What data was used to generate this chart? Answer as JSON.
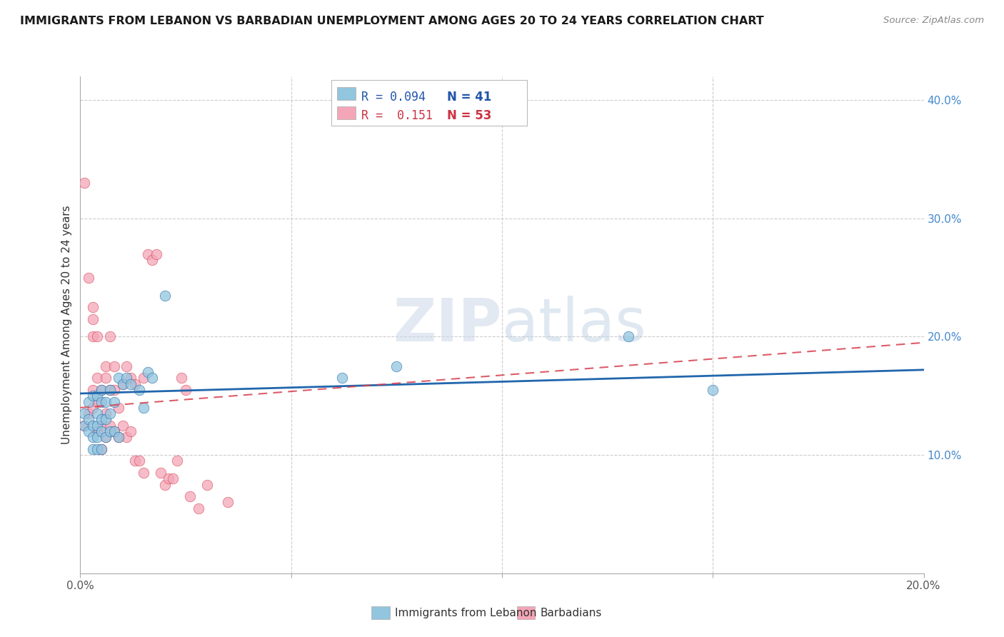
{
  "title": "IMMIGRANTS FROM LEBANON VS BARBADIAN UNEMPLOYMENT AMONG AGES 20 TO 24 YEARS CORRELATION CHART",
  "source": "Source: ZipAtlas.com",
  "ylabel": "Unemployment Among Ages 20 to 24 years",
  "xlim": [
    0.0,
    0.2
  ],
  "ylim": [
    0.0,
    0.42
  ],
  "color_blue": "#92c5de",
  "color_pink": "#f4a6b8",
  "color_blue_line": "#2166ac",
  "color_pink_line": "#d6404e",
  "watermark_zip": "ZIP",
  "watermark_atlas": "atlas",
  "legend_bottom_1": "Immigrants from Lebanon",
  "legend_bottom_2": "Barbadians",
  "blue_scatter_x": [
    0.001,
    0.001,
    0.002,
    0.002,
    0.002,
    0.003,
    0.003,
    0.003,
    0.003,
    0.004,
    0.004,
    0.004,
    0.004,
    0.004,
    0.005,
    0.005,
    0.005,
    0.005,
    0.005,
    0.006,
    0.006,
    0.006,
    0.007,
    0.007,
    0.007,
    0.008,
    0.008,
    0.009,
    0.009,
    0.01,
    0.011,
    0.012,
    0.014,
    0.015,
    0.016,
    0.017,
    0.02,
    0.062,
    0.075,
    0.13,
    0.15
  ],
  "blue_scatter_y": [
    0.125,
    0.135,
    0.12,
    0.13,
    0.145,
    0.105,
    0.115,
    0.125,
    0.15,
    0.105,
    0.115,
    0.125,
    0.135,
    0.15,
    0.105,
    0.12,
    0.13,
    0.145,
    0.155,
    0.115,
    0.13,
    0.145,
    0.12,
    0.135,
    0.155,
    0.12,
    0.145,
    0.115,
    0.165,
    0.16,
    0.165,
    0.16,
    0.155,
    0.14,
    0.17,
    0.165,
    0.235,
    0.165,
    0.175,
    0.2,
    0.155
  ],
  "pink_scatter_x": [
    0.001,
    0.001,
    0.002,
    0.002,
    0.003,
    0.003,
    0.003,
    0.003,
    0.003,
    0.004,
    0.004,
    0.004,
    0.004,
    0.005,
    0.005,
    0.005,
    0.006,
    0.006,
    0.006,
    0.006,
    0.007,
    0.007,
    0.007,
    0.008,
    0.008,
    0.008,
    0.009,
    0.009,
    0.01,
    0.01,
    0.011,
    0.011,
    0.012,
    0.012,
    0.013,
    0.013,
    0.014,
    0.015,
    0.015,
    0.016,
    0.017,
    0.018,
    0.019,
    0.02,
    0.021,
    0.022,
    0.023,
    0.024,
    0.025,
    0.026,
    0.028,
    0.03,
    0.035
  ],
  "pink_scatter_y": [
    0.125,
    0.33,
    0.135,
    0.25,
    0.14,
    0.155,
    0.2,
    0.215,
    0.225,
    0.12,
    0.145,
    0.165,
    0.2,
    0.105,
    0.125,
    0.155,
    0.115,
    0.135,
    0.165,
    0.175,
    0.125,
    0.155,
    0.2,
    0.12,
    0.155,
    0.175,
    0.115,
    0.14,
    0.125,
    0.16,
    0.115,
    0.175,
    0.12,
    0.165,
    0.095,
    0.16,
    0.095,
    0.085,
    0.165,
    0.27,
    0.265,
    0.27,
    0.085,
    0.075,
    0.08,
    0.08,
    0.095,
    0.165,
    0.155,
    0.065,
    0.055,
    0.075,
    0.06
  ],
  "blue_line_x0": 0.0,
  "blue_line_y0": 0.152,
  "blue_line_x1": 0.2,
  "blue_line_y1": 0.172,
  "pink_line_x0": 0.0,
  "pink_line_y0": 0.14,
  "pink_line_x1": 0.2,
  "pink_line_y1": 0.195
}
